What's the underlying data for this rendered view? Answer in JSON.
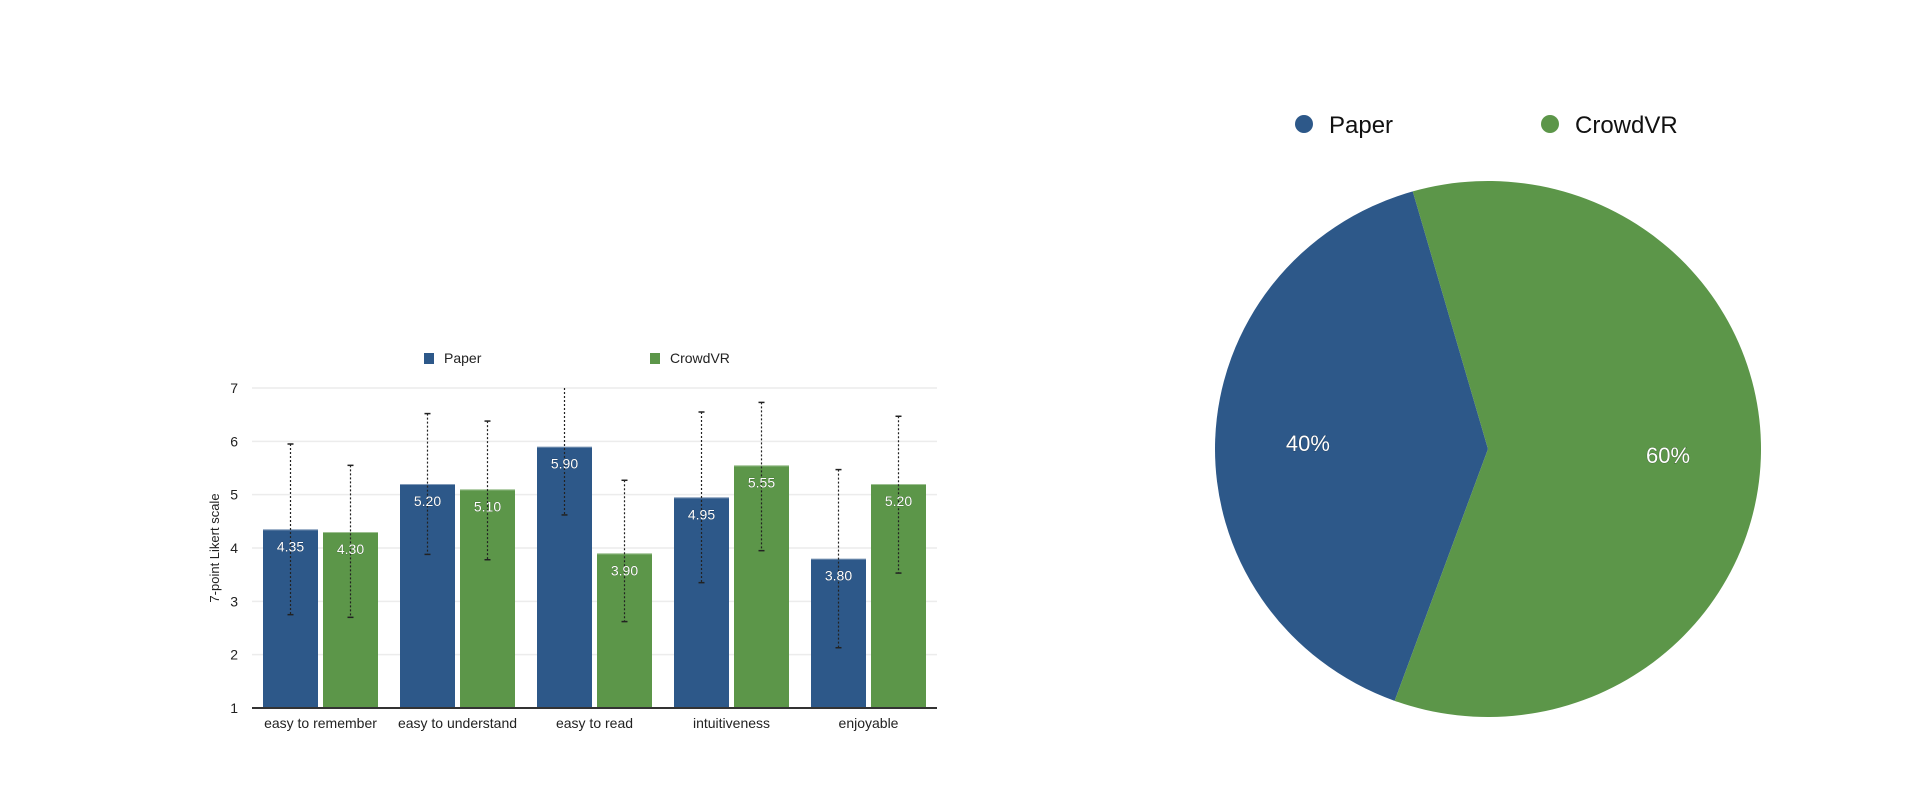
{
  "colors": {
    "paper": "#2d5889",
    "crowdvr": "#5c9649"
  },
  "chart_data": [
    {
      "type": "bar",
      "ylabel": "7-point Likert scale",
      "xlabel": "",
      "ylim": [
        1,
        7
      ],
      "yticks": [
        "1",
        "2",
        "3",
        "4",
        "5",
        "6",
        "7"
      ],
      "grid": true,
      "legend": "top",
      "categories": [
        "easy to remember",
        "easy to understand",
        "easy to read",
        "intuitiveness",
        "enjoyable"
      ],
      "series": [
        {
          "name": "Paper",
          "values": [
            4.35,
            5.2,
            5.9,
            4.95,
            3.8
          ],
          "labels": [
            "4.35",
            "5.20",
            "5.90",
            "4.95",
            "3.80"
          ],
          "error_low": [
            2.75,
            3.88,
            4.62,
            3.35,
            2.13
          ],
          "error_high": [
            5.95,
            6.52,
            7.18,
            6.55,
            5.47
          ]
        },
        {
          "name": "CrowdVR",
          "values": [
            4.3,
            5.1,
            3.9,
            5.55,
            5.2
          ],
          "labels": [
            "4.30",
            "5.10",
            "3.90",
            "5.55",
            "5.20"
          ],
          "error_low": [
            2.7,
            3.78,
            2.62,
            3.95,
            3.53
          ],
          "error_high": [
            5.55,
            6.38,
            5.27,
            6.73,
            6.47
          ]
        }
      ]
    },
    {
      "type": "pie",
      "legend": "top",
      "slices": [
        {
          "name": "Paper",
          "value": 40,
          "label": "40%"
        },
        {
          "name": "CrowdVR",
          "value": 60,
          "label": "60%"
        }
      ]
    }
  ]
}
